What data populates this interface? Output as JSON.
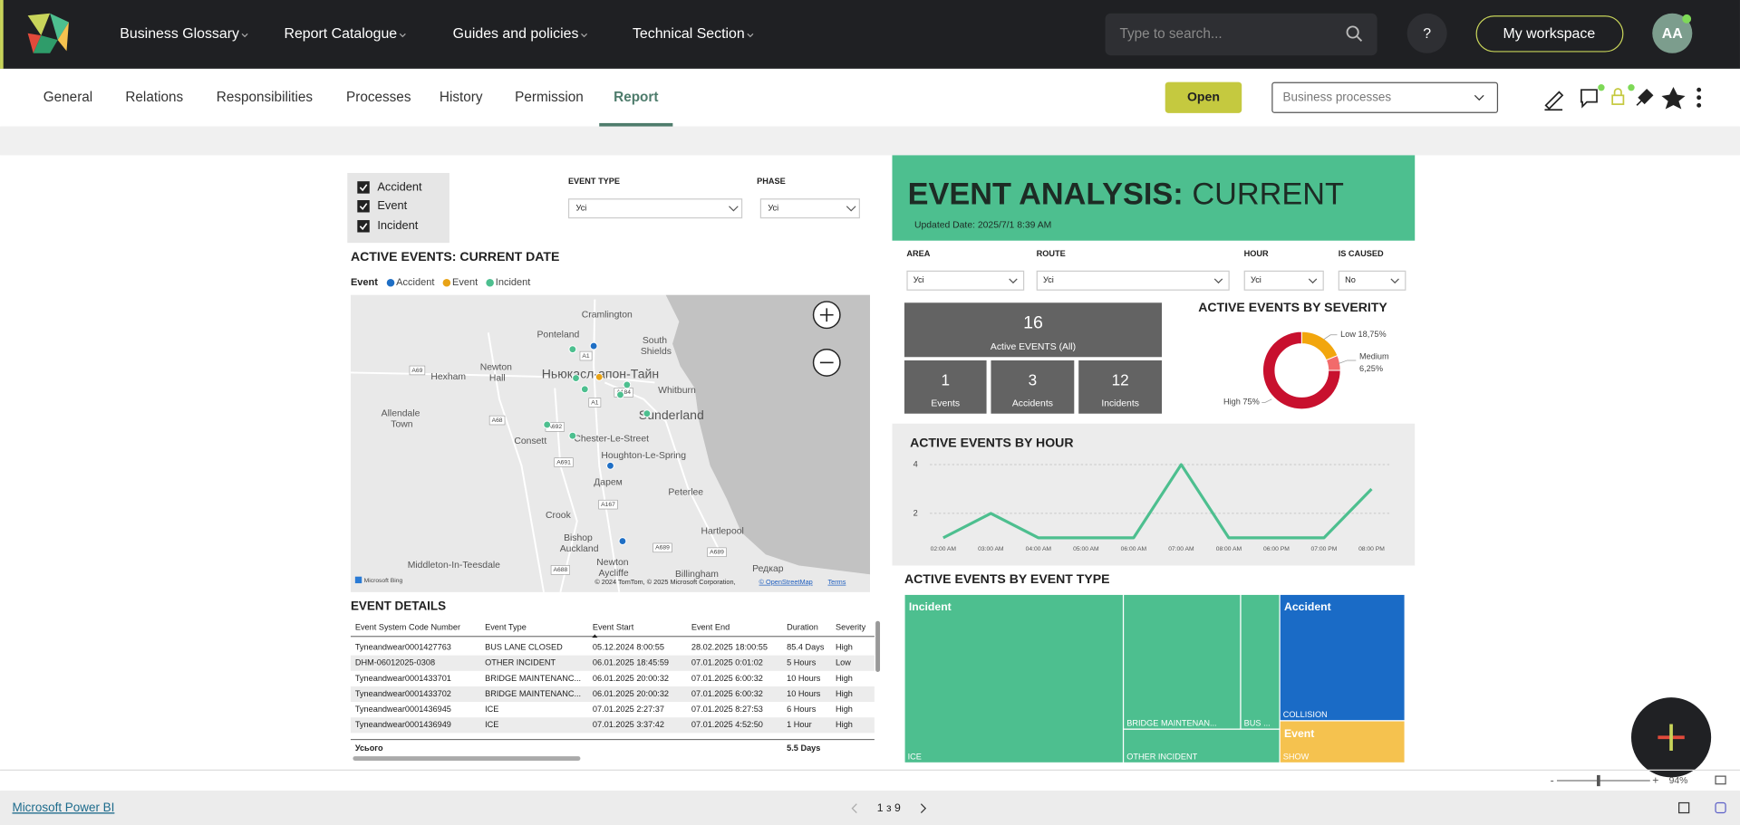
{
  "nav": {
    "menu": [
      "Business Glossary",
      "Report Catalogue",
      "Guides and policies",
      "Technical Section"
    ],
    "search_placeholder": "Type to search...",
    "help": "?",
    "workspace": "My workspace",
    "avatar": "AA"
  },
  "tabs": [
    "General",
    "Relations",
    "Responsibilities",
    "Processes",
    "History",
    "Permission",
    "Report"
  ],
  "toolbar": {
    "open": "Open",
    "dropdown": "Business processes"
  },
  "slicers": {
    "checkboxes": [
      "Accident",
      "Event",
      "Incident"
    ],
    "event_type": {
      "label": "EVENT TYPE",
      "value": "Усі"
    },
    "phase": {
      "label": "PHASE",
      "value": "Усі"
    }
  },
  "map": {
    "title": "ACTIVE EVENTS: CURRENT DATE",
    "legend_title": "Event",
    "legend": [
      {
        "name": "Accident",
        "color": "#1f6fc5"
      },
      {
        "name": "Event",
        "color": "#e8a317"
      },
      {
        "name": "Incident",
        "color": "#4dbf8f"
      }
    ],
    "labels": [
      "Cramlington",
      "Ponteland",
      "South Shields",
      "Newton Hall",
      "Hexham",
      "Ньюкасл-апон-Тайн",
      "Whitburn",
      "Sunderland",
      "Allendale Town",
      "Consett",
      "Chester-Le-Street",
      "Houghton-Le-Spring",
      "Дарем",
      "Peterlee",
      "Crook",
      "Hartlepool",
      "Bishop Auckland",
      "Middleton-In-Teesdale",
      "Newton Aycliffe",
      "Billingham",
      "Редкар",
      "A1",
      "A69",
      "A184",
      "A1",
      "A68",
      "A692",
      "A691",
      "A167",
      "A689",
      "A689",
      "A688"
    ],
    "attribution": "© 2024 TomTom, © 2025 Microsoft Corporation,",
    "osm": "© OpenStreetMap",
    "terms": "Terms",
    "bing": "Microsoft Bing"
  },
  "event_details": {
    "title": "EVENT DETAILS",
    "columns": [
      "Event System Code Number",
      "Event Type",
      "Event Start",
      "Event End",
      "Duration",
      "Severity"
    ],
    "rows": [
      [
        "Tyneandwear0001427763",
        "BUS LANE CLOSED",
        "05.12.2024 8:00:55",
        "28.02.2025 18:00:55",
        "85.4 Days",
        "High"
      ],
      [
        "DHM-06012025-0308",
        "OTHER INCIDENT",
        "06.01.2025 18:45:59",
        "07.01.2025 0:01:02",
        "5 Hours",
        "Low"
      ],
      [
        "Tyneandwear0001433701",
        "BRIDGE MAINTENANC...",
        "06.01.2025 20:00:32",
        "07.01.2025 6:00:32",
        "10 Hours",
        "High"
      ],
      [
        "Tyneandwear0001433702",
        "BRIDGE MAINTENANC...",
        "06.01.2025 20:00:32",
        "07.01.2025 6:00:32",
        "10 Hours",
        "High"
      ],
      [
        "Tyneandwear0001436945",
        "ICE",
        "07.01.2025 2:27:37",
        "07.01.2025 8:27:53",
        "6 Hours",
        "High"
      ],
      [
        "Tyneandwear0001436949",
        "ICE",
        "07.01.2025 3:37:42",
        "07.01.2025 4:52:50",
        "1 Hour",
        "High"
      ]
    ],
    "total_label": "Усього",
    "total_duration": "5.5 Days"
  },
  "analysis": {
    "title": "EVENT ANALYSIS:",
    "subtitle": "CURRENT",
    "updated": "Updated Date: 2025/7/1 8:39 AM",
    "filters": [
      {
        "label": "AREA",
        "value": "Усі"
      },
      {
        "label": "ROUTE",
        "value": "Усі"
      },
      {
        "label": "HOUR",
        "value": "Усі"
      },
      {
        "label": "IS CAUSED",
        "value": "No"
      }
    ],
    "cards": [
      {
        "value": 16,
        "label": "Active EVENTS (All)"
      },
      {
        "value": 1,
        "label": "Events"
      },
      {
        "value": 3,
        "label": "Accidents"
      },
      {
        "value": 12,
        "label": "Incidents"
      }
    ]
  },
  "severity": {
    "type": "donut",
    "title": "ACTIVE EVENTS BY SEVERITY",
    "categories": [
      "Low",
      "Medium",
      "High"
    ],
    "values": [
      18.75,
      6.25,
      75
    ],
    "value_labels": [
      "18,75%",
      "6,25%",
      "75%"
    ],
    "colors": [
      "#f2a60d",
      "#f26b6b",
      "#c8102e"
    ]
  },
  "hourly": {
    "type": "line",
    "title": "ACTIVE EVENTS BY HOUR",
    "categories": [
      "02:00 AM",
      "03:00 AM",
      "04:00 AM",
      "05:00 AM",
      "06:00 AM",
      "07:00 AM",
      "08:00 AM",
      "06:00 PM",
      "07:00 PM",
      "08:00 PM"
    ],
    "values": [
      1,
      2,
      1,
      1,
      1,
      4,
      1,
      1,
      1,
      3
    ],
    "ylim": [
      0.7,
      4.2
    ],
    "yticks": [
      2,
      4
    ],
    "color": "#4dbf8f",
    "grid": true
  },
  "treemap": {
    "type": "treemap",
    "title": "ACTIVE EVENTS BY EVENT TYPE",
    "groups": [
      {
        "name": "Incident",
        "color": "#4dbf8f",
        "items": [
          {
            "name": "ICE",
            "value": 7
          },
          {
            "name": "BRIDGE MAINTENAN...",
            "value": 3
          },
          {
            "name": "BUS ...",
            "value": 1
          },
          {
            "name": "OTHER INCIDENT",
            "value": 1
          }
        ]
      },
      {
        "name": "Accident",
        "color": "#1a6bc6",
        "items": [
          {
            "name": "COLLISION",
            "value": 3
          }
        ]
      },
      {
        "name": "Event",
        "color": "#f5c24f",
        "items": [
          {
            "name": "SHOW",
            "value": 1
          }
        ]
      }
    ]
  },
  "footer": {
    "brand": "Microsoft Power BI",
    "page": "1 з 9",
    "zoom": "94%"
  }
}
